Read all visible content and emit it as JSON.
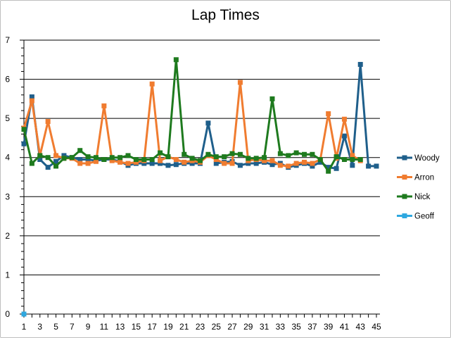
{
  "chart_data": {
    "type": "line",
    "title": "Lap Times",
    "xlabel": "",
    "ylabel": "",
    "ylim": [
      0,
      7
    ],
    "y_ticks": [
      "0",
      "1",
      "2",
      "3",
      "4",
      "5",
      "6",
      "7"
    ],
    "x_ticks": [
      "1",
      "3",
      "5",
      "7",
      "9",
      "11",
      "13",
      "15",
      "17",
      "19",
      "21",
      "23",
      "25",
      "27",
      "29",
      "31",
      "33",
      "35",
      "37",
      "39",
      "41",
      "43",
      "45"
    ],
    "x_count": 45,
    "grid": "horizontal",
    "legend_position": "right",
    "series": [
      {
        "name": "Woody",
        "color": "#1f5f8b",
        "values": [
          4.35,
          5.55,
          3.95,
          3.75,
          3.9,
          4.05,
          4.0,
          3.95,
          3.95,
          3.92,
          3.95,
          3.95,
          3.9,
          3.8,
          3.85,
          3.85,
          3.85,
          3.85,
          3.8,
          3.82,
          3.85,
          3.85,
          3.85,
          4.88,
          3.85,
          3.88,
          3.9,
          3.8,
          3.85,
          3.85,
          3.88,
          3.82,
          3.85,
          3.75,
          3.8,
          3.85,
          3.78,
          3.88,
          3.75,
          3.72,
          4.55,
          3.8,
          6.38,
          3.78,
          3.78
        ]
      },
      {
        "name": "Arron",
        "color": "#f07c30",
        "values": [
          4.75,
          5.45,
          4.05,
          4.92,
          4.05,
          3.98,
          3.98,
          3.85,
          3.85,
          3.9,
          5.32,
          3.92,
          3.88,
          3.85,
          3.88,
          3.92,
          5.88,
          3.92,
          4.02,
          3.95,
          3.88,
          3.92,
          3.88,
          4.05,
          3.95,
          3.85,
          3.85,
          5.92,
          3.92,
          3.95,
          3.92,
          3.92,
          3.8,
          3.78,
          3.85,
          3.88,
          3.85,
          3.95,
          5.12,
          3.98,
          4.98,
          4.05,
          3.92,
          null,
          null
        ]
      },
      {
        "name": "Nick",
        "color": "#1e7a1e",
        "values": [
          4.72,
          3.85,
          4.05,
          4.0,
          3.78,
          3.98,
          4.0,
          4.18,
          4.02,
          4.0,
          3.95,
          4.0,
          4.0,
          4.05,
          3.95,
          3.95,
          3.95,
          4.12,
          4.02,
          6.5,
          4.08,
          3.98,
          3.92,
          4.08,
          4.02,
          4.02,
          4.1,
          4.08,
          3.98,
          3.98,
          4.0,
          5.5,
          4.1,
          4.05,
          4.12,
          4.08,
          4.08,
          3.95,
          3.65,
          4.02,
          3.95,
          3.95,
          3.95,
          null,
          null
        ]
      },
      {
        "name": "Geoff",
        "color": "#2ea8e0",
        "values": [
          0.0
        ]
      }
    ]
  }
}
